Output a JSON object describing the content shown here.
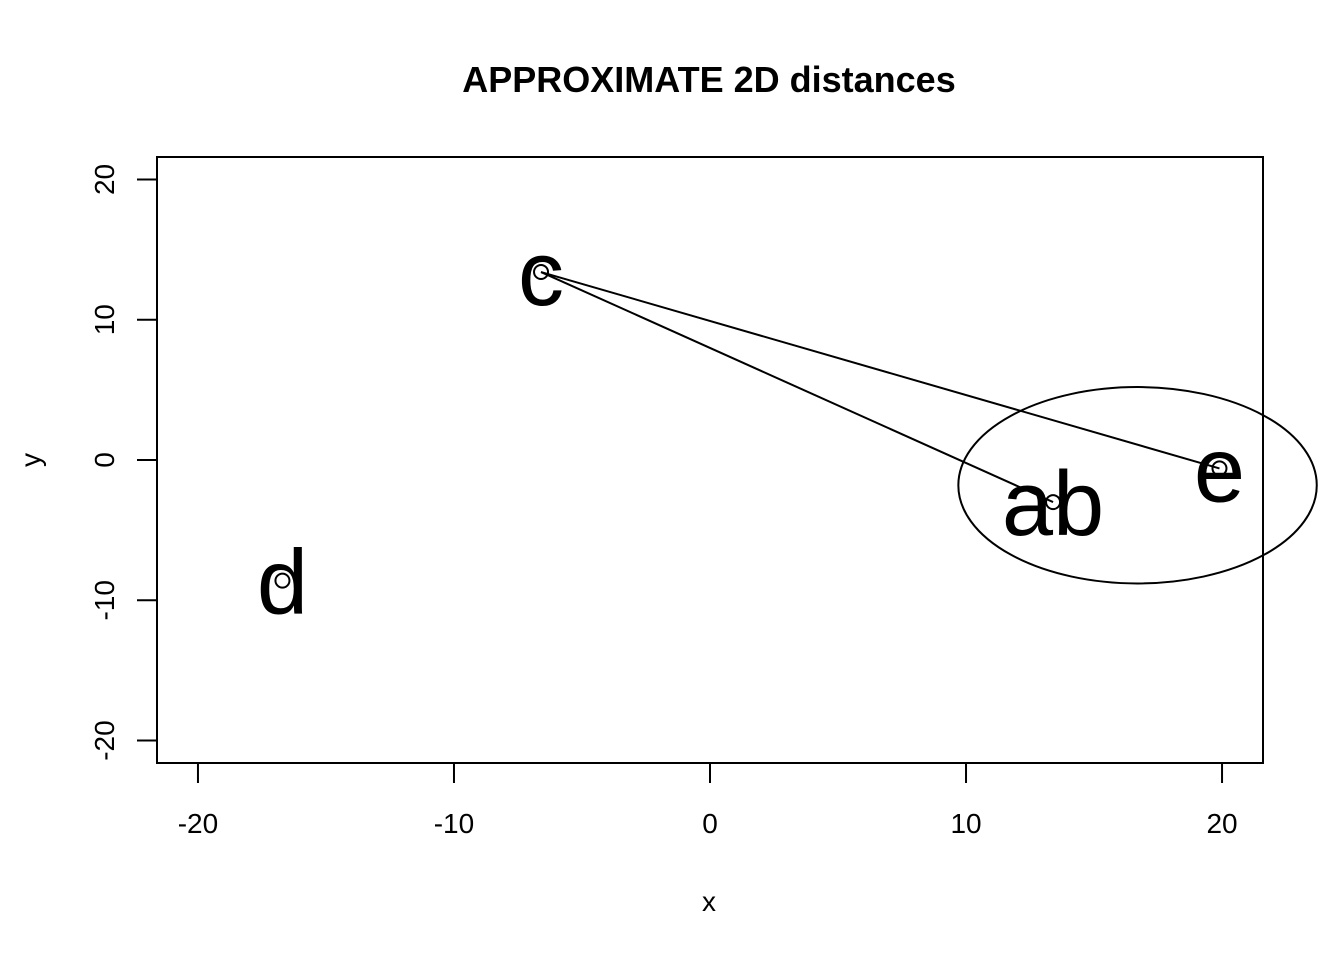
{
  "chart_data": {
    "type": "scatter",
    "title": "APPROXIMATE 2D distances",
    "xlabel": "x",
    "ylabel": "y",
    "xlim": [
      -21.6,
      21.6
    ],
    "ylim": [
      -21.6,
      21.6
    ],
    "x_ticks": [
      -20,
      -10,
      0,
      10,
      20
    ],
    "x_tick_labels": [
      "-20",
      "-10",
      "0",
      "10",
      "20"
    ],
    "y_ticks": [
      -20,
      -10,
      0,
      10,
      20
    ],
    "y_tick_labels": [
      "-20",
      "-10",
      "0",
      "10",
      "20"
    ],
    "grid": false,
    "points": [
      {
        "label": "c",
        "x": -6.6,
        "y": 13.4
      },
      {
        "label": "ab",
        "x": 13.4,
        "y": -3.0
      },
      {
        "label": "e",
        "x": 19.9,
        "y": -0.6
      },
      {
        "label": "d",
        "x": -16.7,
        "y": -8.6
      }
    ],
    "segments": [
      {
        "from": "c",
        "to": "e"
      },
      {
        "from": "c",
        "to": "ab"
      }
    ],
    "ellipse": {
      "cx": 16.7,
      "cy": -1.8,
      "rx": 7.0,
      "ry": 7.0
    }
  }
}
